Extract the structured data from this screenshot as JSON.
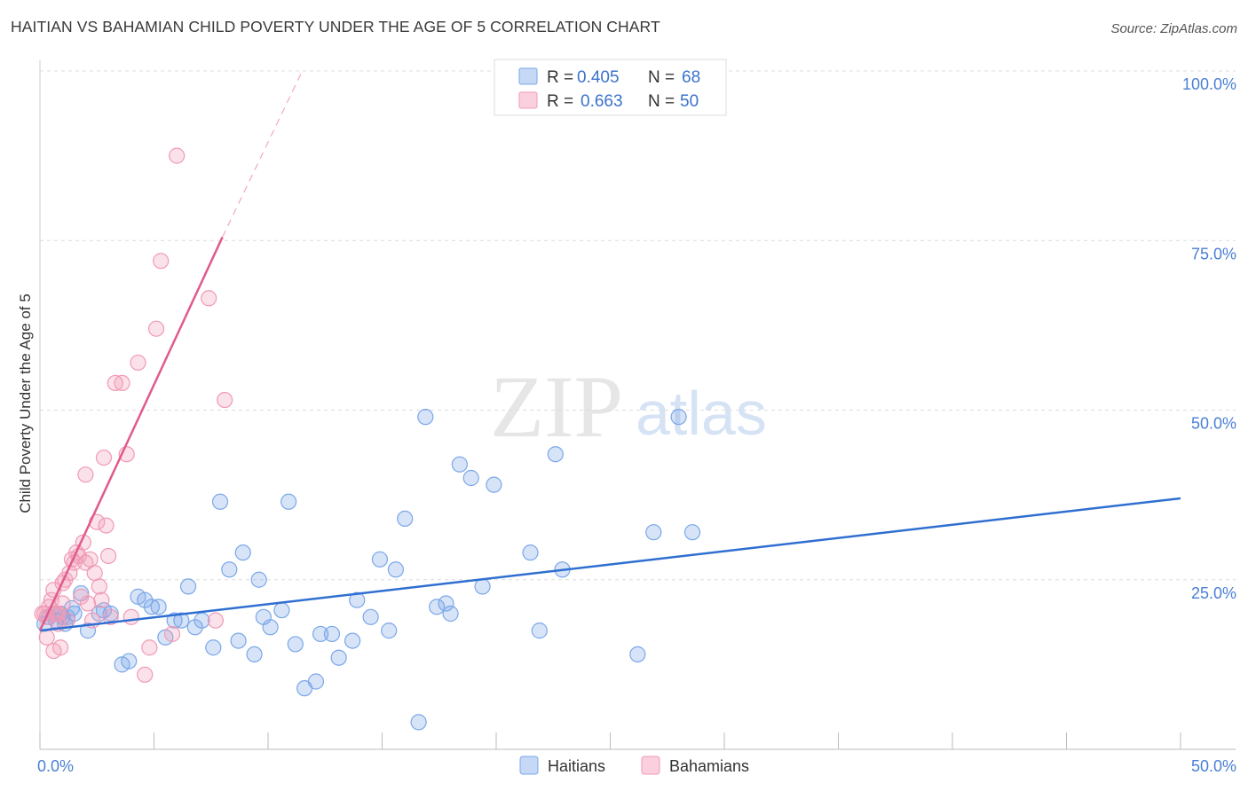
{
  "title": "HAITIAN VS BAHAMIAN CHILD POVERTY UNDER THE AGE OF 5 CORRELATION CHART",
  "source": "Source: ZipAtlas.com",
  "watermark": {
    "zip": "ZIP",
    "atlas": "atlas"
  },
  "legend_top": [
    {
      "r_label": "R =",
      "r_value": "0.405",
      "n_label": "N =",
      "n_value": "68",
      "color": "#7aa7e8"
    },
    {
      "r_label": "R =",
      "r_value": "0.663",
      "n_label": "N =",
      "n_value": "50",
      "color": "#f19ab5"
    }
  ],
  "chart_data": {
    "type": "scatter",
    "ylabel": "Child Poverty Under the Age of 5",
    "xlim": [
      0,
      50
    ],
    "ylim": [
      0,
      100
    ],
    "x_tick_labels": [
      "0.0%",
      "50.0%"
    ],
    "y_ticks": [
      25,
      50,
      75,
      100
    ],
    "y_tick_labels": [
      "25.0%",
      "50.0%",
      "75.0%",
      "100.0%"
    ],
    "grid": true,
    "legend_position": "bottom-center",
    "series": [
      {
        "name": "Haitians",
        "color": "#7aa7e8",
        "line_color": "#2f6fd1",
        "trend": {
          "x": [
            0,
            50
          ],
          "y": [
            17.5,
            37.0
          ],
          "dashed_x": null
        },
        "points": [
          [
            0.2,
            18.5
          ],
          [
            0.4,
            19.5
          ],
          [
            0.6,
            20
          ],
          [
            0.7,
            19
          ],
          [
            0.9,
            20
          ],
          [
            1.0,
            19.5
          ],
          [
            1.1,
            18.5
          ],
          [
            1.2,
            19.5
          ],
          [
            1.4,
            20.8
          ],
          [
            1.5,
            20
          ],
          [
            1.8,
            23
          ],
          [
            2.1,
            17.5
          ],
          [
            2.6,
            20
          ],
          [
            2.8,
            20.5
          ],
          [
            3.1,
            20
          ],
          [
            3.6,
            12.5
          ],
          [
            3.9,
            13
          ],
          [
            4.3,
            22.5
          ],
          [
            4.6,
            22
          ],
          [
            4.9,
            21
          ],
          [
            5.2,
            21
          ],
          [
            5.5,
            16.5
          ],
          [
            5.9,
            19
          ],
          [
            6.2,
            19
          ],
          [
            6.5,
            24
          ],
          [
            6.8,
            18
          ],
          [
            7.1,
            19
          ],
          [
            7.6,
            15
          ],
          [
            7.9,
            36.5
          ],
          [
            8.3,
            26.5
          ],
          [
            8.7,
            16
          ],
          [
            8.9,
            29
          ],
          [
            9.4,
            14
          ],
          [
            9.6,
            25
          ],
          [
            9.8,
            19.5
          ],
          [
            10.1,
            18
          ],
          [
            10.6,
            20.5
          ],
          [
            10.9,
            36.5
          ],
          [
            11.2,
            15.5
          ],
          [
            11.6,
            9
          ],
          [
            12.1,
            10
          ],
          [
            12.3,
            17
          ],
          [
            12.8,
            17
          ],
          [
            13.1,
            13.5
          ],
          [
            13.7,
            16
          ],
          [
            13.9,
            22
          ],
          [
            14.5,
            19.5
          ],
          [
            14.9,
            28
          ],
          [
            15.3,
            17.5
          ],
          [
            15.6,
            26.5
          ],
          [
            16.0,
            34
          ],
          [
            16.6,
            4
          ],
          [
            16.9,
            49
          ],
          [
            17.4,
            21
          ],
          [
            17.8,
            21.5
          ],
          [
            18.0,
            20
          ],
          [
            18.4,
            42
          ],
          [
            18.9,
            40
          ],
          [
            19.4,
            24
          ],
          [
            19.9,
            39
          ],
          [
            21.5,
            29
          ],
          [
            21.9,
            17.5
          ],
          [
            22.6,
            43.5
          ],
          [
            22.9,
            26.5
          ],
          [
            26.2,
            14
          ],
          [
            26.9,
            32
          ],
          [
            28.0,
            49
          ],
          [
            28.6,
            32
          ]
        ]
      },
      {
        "name": "Bahamians",
        "color": "#f19ab5",
        "line_color": "#e05a8e",
        "trend": {
          "x": [
            0,
            8
          ],
          "y": [
            17.5,
            75.5
          ],
          "dashed_to": [
            11.5,
            100
          ]
        },
        "points": [
          [
            0.1,
            20
          ],
          [
            0.2,
            20
          ],
          [
            0.3,
            19.5
          ],
          [
            0.4,
            21
          ],
          [
            0.5,
            22
          ],
          [
            0.6,
            23.5
          ],
          [
            0.6,
            14.5
          ],
          [
            0.7,
            20
          ],
          [
            0.8,
            18.5
          ],
          [
            0.9,
            15
          ],
          [
            1.0,
            21.5
          ],
          [
            1.1,
            25
          ],
          [
            1.2,
            19
          ],
          [
            1.3,
            26
          ],
          [
            1.4,
            28
          ],
          [
            1.5,
            27.5
          ],
          [
            1.6,
            29
          ],
          [
            1.7,
            28.5
          ],
          [
            1.8,
            22.5
          ],
          [
            1.9,
            30.5
          ],
          [
            2.0,
            27.5
          ],
          [
            2.1,
            21.5
          ],
          [
            2.2,
            28
          ],
          [
            2.3,
            19
          ],
          [
            2.4,
            26
          ],
          [
            2.5,
            33.5
          ],
          [
            2.6,
            24
          ],
          [
            2.7,
            22
          ],
          [
            2.8,
            43
          ],
          [
            2.9,
            33
          ],
          [
            3.0,
            28.5
          ],
          [
            3.1,
            19.5
          ],
          [
            3.3,
            54
          ],
          [
            3.6,
            54
          ],
          [
            3.8,
            43.5
          ],
          [
            4.0,
            19.5
          ],
          [
            4.3,
            57
          ],
          [
            4.6,
            11
          ],
          [
            4.8,
            15
          ],
          [
            5.1,
            62
          ],
          [
            5.3,
            72
          ],
          [
            5.8,
            17
          ],
          [
            6.0,
            87.5
          ],
          [
            7.4,
            66.5
          ],
          [
            7.7,
            19
          ],
          [
            8.1,
            51.5
          ],
          [
            1.0,
            24.5
          ],
          [
            0.3,
            16.5
          ],
          [
            2.0,
            40.5
          ],
          [
            0.8,
            20
          ]
        ]
      }
    ]
  }
}
